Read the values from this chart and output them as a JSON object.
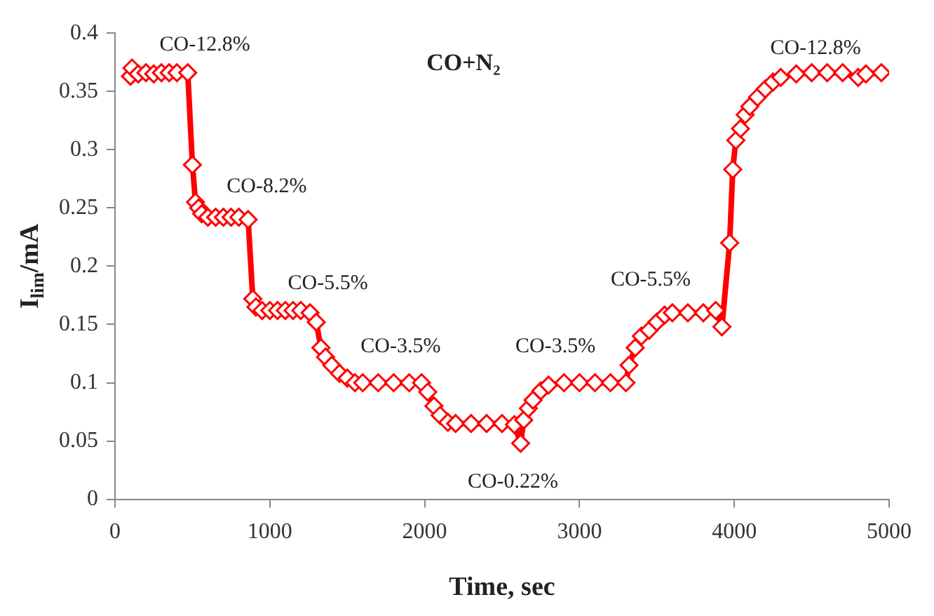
{
  "chart_data": {
    "type": "line",
    "title": "CO+N₂",
    "xlabel": "Time, sec",
    "ylabel": "I$_{lim}$/mA",
    "x": [
      100,
      110,
      150,
      200,
      250,
      300,
      350,
      400,
      470,
      500,
      520,
      540,
      560,
      600,
      650,
      700,
      750,
      800,
      860,
      890,
      910,
      950,
      1000,
      1050,
      1100,
      1150,
      1200,
      1260,
      1300,
      1330,
      1360,
      1400,
      1450,
      1500,
      1550,
      1600,
      1700,
      1800,
      1900,
      1980,
      2020,
      2060,
      2100,
      2150,
      2200,
      2300,
      2400,
      2500,
      2580,
      2620,
      2640,
      2670,
      2700,
      2750,
      2800,
      2900,
      3000,
      3100,
      3200,
      3300,
      3320,
      3360,
      3400,
      3450,
      3500,
      3550,
      3600,
      3700,
      3800,
      3880,
      3920,
      3970,
      3990,
      4010,
      4040,
      4070,
      4100,
      4150,
      4200,
      4250,
      4300,
      4400,
      4500,
      4600,
      4700,
      4800,
      4850,
      4950
    ],
    "series": [
      {
        "color": "#ff0000",
        "values": [
          0.363,
          0.37,
          0.365,
          0.366,
          0.365,
          0.366,
          0.366,
          0.366,
          0.366,
          0.287,
          0.255,
          0.25,
          0.245,
          0.242,
          0.242,
          0.242,
          0.242,
          0.242,
          0.24,
          0.172,
          0.165,
          0.162,
          0.162,
          0.162,
          0.162,
          0.162,
          0.162,
          0.16,
          0.152,
          0.13,
          0.122,
          0.115,
          0.108,
          0.104,
          0.1,
          0.1,
          0.1,
          0.1,
          0.1,
          0.1,
          0.092,
          0.08,
          0.072,
          0.066,
          0.065,
          0.065,
          0.065,
          0.065,
          0.064,
          0.048,
          0.068,
          0.078,
          0.085,
          0.093,
          0.098,
          0.1,
          0.1,
          0.1,
          0.1,
          0.1,
          0.115,
          0.13,
          0.14,
          0.145,
          0.152,
          0.158,
          0.16,
          0.16,
          0.16,
          0.162,
          0.148,
          0.22,
          0.283,
          0.308,
          0.318,
          0.33,
          0.337,
          0.345,
          0.352,
          0.358,
          0.362,
          0.365,
          0.366,
          0.366,
          0.366,
          0.362,
          0.365,
          0.366
        ]
      }
    ],
    "xlim": [
      0,
      5000
    ],
    "xticks": [
      0,
      1000,
      2000,
      3000,
      4000,
      5000
    ],
    "ylim": [
      0,
      0.4
    ],
    "yticks": [
      0,
      0.05,
      0.1,
      0.15,
      0.2,
      0.25,
      0.3,
      0.35,
      0.4
    ],
    "grid": false,
    "marker": "diamond",
    "line_style": "solid",
    "annotations": [
      "CO-12.8%",
      "CO-8.2%",
      "CO-5.5%",
      "CO-3.5%",
      "CO-0.22%",
      "CO-3.5%",
      "CO-5.5%",
      "CO-12.8%"
    ]
  }
}
